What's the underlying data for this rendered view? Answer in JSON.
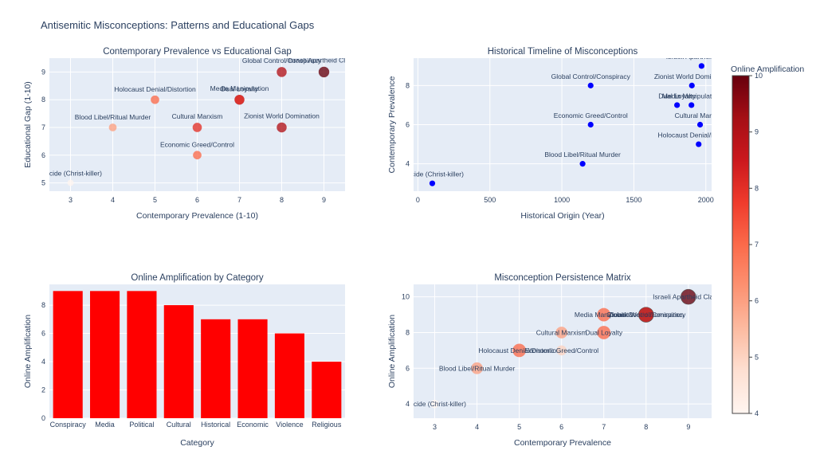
{
  "title": "Antisemitic Misconceptions: Patterns and Educational Gaps",
  "colors": {
    "plot_bg": "#e5ecf6",
    "grid": "#ffffff",
    "scatter_blue": "#0000ff",
    "bar_red": "#ff0000",
    "colorscale": [
      "#fff5f0",
      "#fee0d2",
      "#fcbba1",
      "#fc9272",
      "#fb6a4a",
      "#ef3b2c",
      "#cb181d",
      "#a50f15",
      "#67000d"
    ]
  },
  "colorbar": {
    "title": "Online Amplification",
    "min": 4,
    "max": 10,
    "ticks": [
      4,
      5,
      6,
      7,
      8,
      9,
      10
    ]
  },
  "chart_data": [
    {
      "id": "prevalence-gap",
      "type": "scatter",
      "title": "Contemporary Prevalence vs Educational Gap",
      "xlabel": "Contemporary Prevalence (1-10)",
      "ylabel": "Educational Gap (1-10)",
      "xlim": [
        2.5,
        9.5
      ],
      "ylim": [
        4.7,
        9.5
      ],
      "xticks": [
        3,
        4,
        5,
        6,
        7,
        8,
        9
      ],
      "yticks": [
        5,
        6,
        7,
        8,
        9
      ],
      "points": [
        {
          "label": "Deicide (Christ-killer)",
          "x": 3,
          "y": 5,
          "color": 4
        },
        {
          "label": "Blood Libel/Ritual Murder",
          "x": 4,
          "y": 7,
          "color": 6
        },
        {
          "label": "Holocaust Denial/Distortion",
          "x": 5,
          "y": 8,
          "color": 7
        },
        {
          "label": "Economic Greed/Control",
          "x": 6,
          "y": 6,
          "color": 7
        },
        {
          "label": "Cultural Marxism",
          "x": 6,
          "y": 7,
          "color": 8
        },
        {
          "label": "Media Manipulation",
          "x": 7,
          "y": 8,
          "color": 9
        },
        {
          "label": "Dual Loyalty",
          "x": 7,
          "y": 8,
          "color": 8
        },
        {
          "label": "Global Control/Conspiracy",
          "x": 8,
          "y": 9,
          "color": 9
        },
        {
          "label": "Zionist World Domination",
          "x": 8,
          "y": 7,
          "color": 9
        },
        {
          "label": "Israeli Apartheid Claims",
          "x": 9,
          "y": 9,
          "color": 10
        }
      ]
    },
    {
      "id": "timeline",
      "type": "scatter",
      "title": "Historical Timeline of Misconceptions",
      "xlabel": "Historical Origin (Year)",
      "ylabel": "Contemporary Prevalence",
      "xlim": [
        -30,
        2040
      ],
      "ylim": [
        2.6,
        9.4
      ],
      "xticks": [
        0,
        500,
        1000,
        1500,
        2000
      ],
      "yticks": [
        4,
        6,
        8
      ],
      "points": [
        {
          "label": "Deicide (Christ-killer)",
          "x": 100,
          "y": 3
        },
        {
          "label": "Blood Libel/Ritual Murder",
          "x": 1144,
          "y": 4
        },
        {
          "label": "Economic Greed/Control",
          "x": 1200,
          "y": 6
        },
        {
          "label": "Global Control/Conspiracy",
          "x": 1200,
          "y": 8
        },
        {
          "label": "Dual Loyalty",
          "x": 1800,
          "y": 7
        },
        {
          "label": "Media Manipulation",
          "x": 1900,
          "y": 7
        },
        {
          "label": "Zionist World Domination",
          "x": 1903,
          "y": 8
        },
        {
          "label": "Cultural Marxism",
          "x": 1960,
          "y": 6
        },
        {
          "label": "Holocaust Denial/Distortion",
          "x": 1950,
          "y": 5
        },
        {
          "label": "Israeli Apartheid Claims",
          "x": 1970,
          "y": 9
        }
      ]
    },
    {
      "id": "amplification-bar",
      "type": "bar",
      "title": "Online Amplification by Category",
      "xlabel": "Category",
      "ylabel": "Online Amplification",
      "ylim": [
        0,
        9.47
      ],
      "yticks": [
        0,
        2,
        4,
        6,
        8
      ],
      "categories": [
        "Conspiracy",
        "Media",
        "Political",
        "Cultural",
        "Historical",
        "Economic",
        "Violence",
        "Religious"
      ],
      "values": [
        9,
        9,
        9,
        8,
        7,
        7,
        6,
        4
      ]
    },
    {
      "id": "persistence",
      "type": "scatter",
      "title": "Misconception Persistence Matrix",
      "xlabel": "Contemporary Prevalence",
      "ylabel": "Online Amplification",
      "xlim": [
        2.5,
        9.55
      ],
      "ylim": [
        3.2,
        10.7
      ],
      "xticks": [
        3,
        4,
        5,
        6,
        7,
        8,
        9
      ],
      "yticks": [
        4,
        6,
        8,
        10
      ],
      "points": [
        {
          "label": "Deicide (Christ-killer)",
          "x": 3,
          "y": 4,
          "size": 5,
          "color": 4
        },
        {
          "label": "Blood Libel/Ritual Murder",
          "x": 4,
          "y": 6,
          "size": 7,
          "color": 6
        },
        {
          "label": "Holocaust Denial/Distortion",
          "x": 5,
          "y": 7,
          "size": 8,
          "color": 7
        },
        {
          "label": "Economic Greed/Control",
          "x": 6,
          "y": 7,
          "size": 6,
          "color": 5
        },
        {
          "label": "Cultural Marxism",
          "x": 6,
          "y": 8,
          "size": 7,
          "color": 6
        },
        {
          "label": "Dual Loyalty",
          "x": 7,
          "y": 8,
          "size": 8,
          "color": 7
        },
        {
          "label": "Media Manipulation",
          "x": 7,
          "y": 9,
          "size": 8,
          "color": 7
        },
        {
          "label": "Zionist World Domination",
          "x": 8,
          "y": 9,
          "size": 9,
          "color": 7
        },
        {
          "label": "Global Control/Conspiracy",
          "x": 8,
          "y": 9,
          "size": 9,
          "color": 9
        },
        {
          "label": "Israeli Apartheid Claims",
          "x": 9,
          "y": 10,
          "size": 9,
          "color": 10
        }
      ]
    }
  ]
}
